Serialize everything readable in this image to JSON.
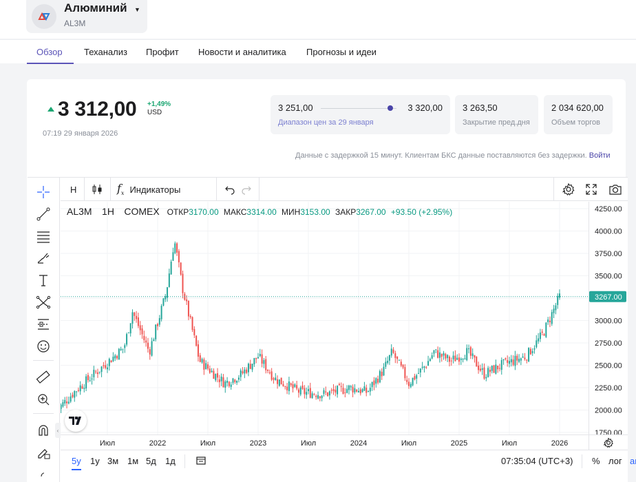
{
  "header": {
    "instrument_name": "Алюминий",
    "ticker": "AL3M",
    "tabs": [
      {
        "label": "Обзор",
        "active": true
      },
      {
        "label": "Теханализ",
        "active": false
      },
      {
        "label": "Профит",
        "active": false
      },
      {
        "label": "Новости и аналитика",
        "active": false
      },
      {
        "label": "Прогнозы и идеи",
        "active": false
      }
    ]
  },
  "quote": {
    "price": "3 312,00",
    "change": "+1,49%",
    "currency": "USD",
    "timestamp": "07:19 29 января 2026",
    "range_low": "3 251,00",
    "range_high": "3 320,00",
    "range_caption": "Диапазон цен за 29 января",
    "range_position": 0.92,
    "prev_close": "3 263,50",
    "prev_close_caption": "Закрытие пред.дня",
    "volume": "2 034 620,00",
    "volume_caption": "Объем торгов",
    "delay_note": "Данные с задержкой 15 минут. Клиентам БКС данные поставляются без задержки.",
    "login_link": "Войти"
  },
  "toolbar": {
    "interval": "H",
    "indicators_label": "Индикаторы"
  },
  "legend": {
    "symbol": "AL3M",
    "interval": "1H",
    "exchange": "COMEX",
    "open_label": "ОТКР",
    "open": "3170.00",
    "high_label": "МАКС",
    "high": "3314.00",
    "low_label": "МИН",
    "low": "3153.00",
    "close_label": "ЗАКР",
    "close": "3267.00",
    "change": "+93.50 (+2.95%)"
  },
  "bottom": {
    "timeframes": [
      "5y",
      "1y",
      "3м",
      "1м",
      "5д",
      "1д"
    ],
    "active_timeframe": "5y",
    "clock": "07:35:04 (UTC+3)",
    "percent_label": "%",
    "log_label": "лог",
    "auto_label": "авто"
  },
  "colors": {
    "up": "#26a69a",
    "down": "#ef5350",
    "accent": "#5b54b8",
    "price_line": "#26a69a",
    "link": "#2962ff"
  },
  "chart_data": {
    "type": "candlestick",
    "y_ticks": [
      "4250.00",
      "4000.00",
      "3750.00",
      "3500.00",
      "3250.00",
      "3000.00",
      "2750.00",
      "2500.00",
      "2250.00",
      "2000.00",
      "1750.00"
    ],
    "x_ticks": [
      "Июл",
      "2022",
      "Июл",
      "2023",
      "Июл",
      "2024",
      "Июл",
      "2025",
      "Июл",
      "2026"
    ],
    "ylim": [
      1750,
      4250
    ],
    "last_price_label": "3267.00",
    "approx_series": [
      {
        "x": "2021-01",
        "y": 2000
      },
      {
        "x": "2021-03",
        "y": 2200
      },
      {
        "x": "2021-06",
        "y": 2450
      },
      {
        "x": "2021-09",
        "y": 2700
      },
      {
        "x": "2021-10",
        "y": 3100
      },
      {
        "x": "2021-12",
        "y": 2650
      },
      {
        "x": "2022-02",
        "y": 3300
      },
      {
        "x": "2022-03",
        "y": 3900
      },
      {
        "x": "2022-04",
        "y": 3350
      },
      {
        "x": "2022-06",
        "y": 2550
      },
      {
        "x": "2022-09",
        "y": 2300
      },
      {
        "x": "2022-11",
        "y": 2400
      },
      {
        "x": "2023-01",
        "y": 2600
      },
      {
        "x": "2023-03",
        "y": 2350
      },
      {
        "x": "2023-06",
        "y": 2200
      },
      {
        "x": "2023-09",
        "y": 2180
      },
      {
        "x": "2023-12",
        "y": 2250
      },
      {
        "x": "2024-02",
        "y": 2200
      },
      {
        "x": "2024-04",
        "y": 2450
      },
      {
        "x": "2024-05",
        "y": 2650
      },
      {
        "x": "2024-07",
        "y": 2300
      },
      {
        "x": "2024-09",
        "y": 2500
      },
      {
        "x": "2024-10",
        "y": 2650
      },
      {
        "x": "2024-12",
        "y": 2550
      },
      {
        "x": "2025-02",
        "y": 2650
      },
      {
        "x": "2025-04",
        "y": 2400
      },
      {
        "x": "2025-06",
        "y": 2500
      },
      {
        "x": "2025-09",
        "y": 2600
      },
      {
        "x": "2025-11",
        "y": 2850
      },
      {
        "x": "2026-01",
        "y": 3267
      }
    ]
  }
}
